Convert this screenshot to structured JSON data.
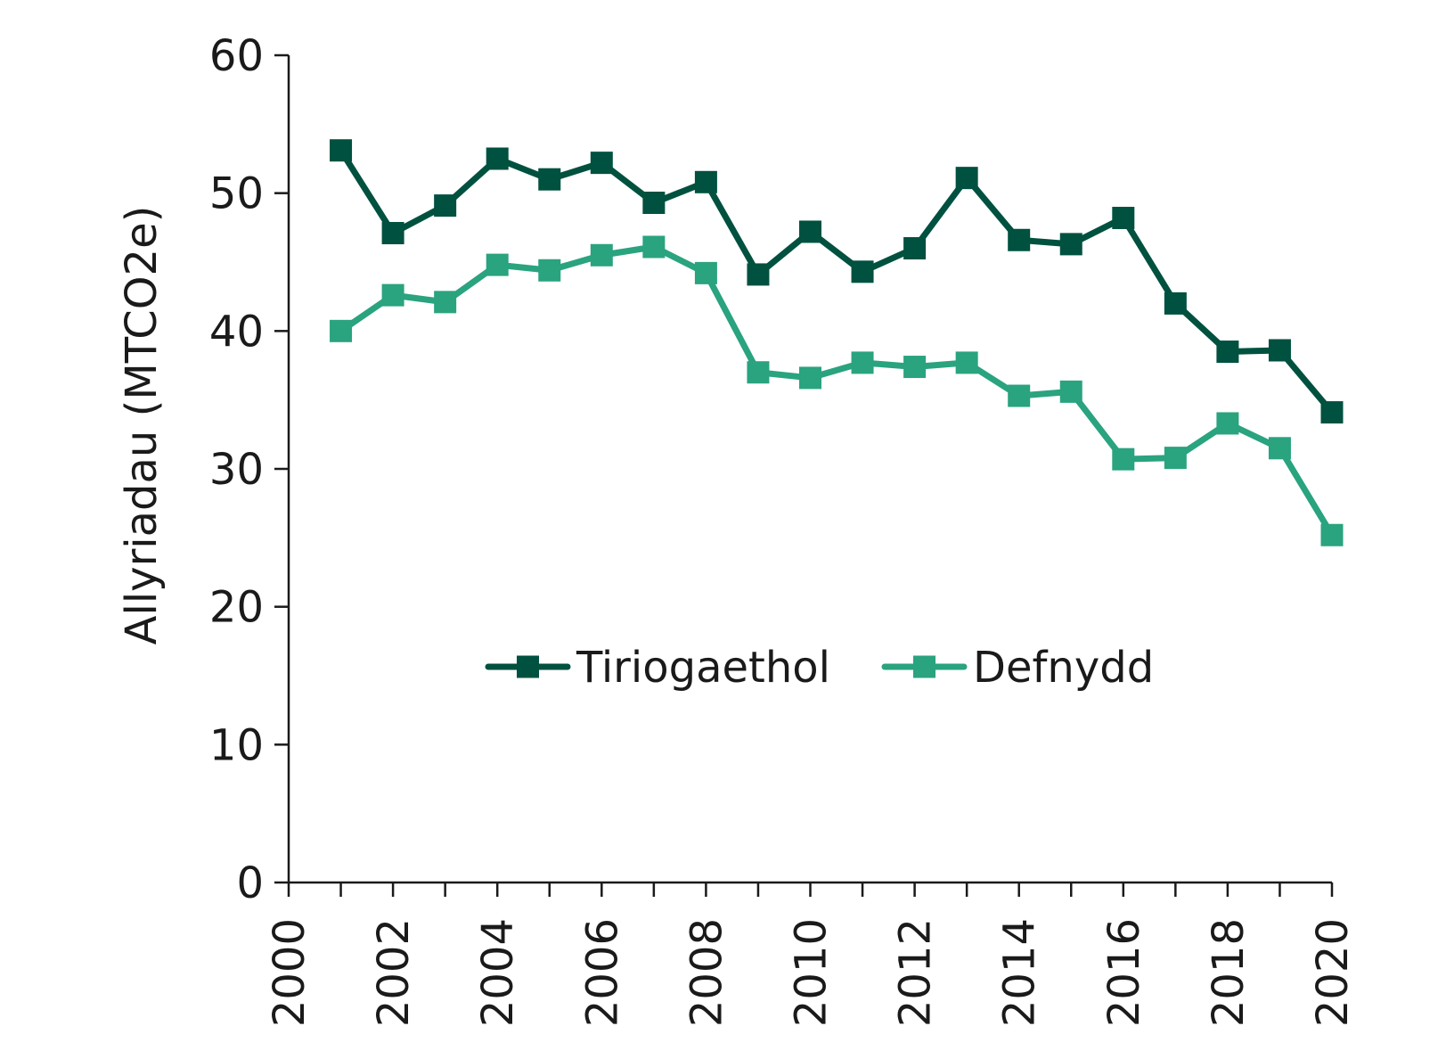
{
  "chart_data": {
    "type": "line",
    "title": "",
    "xlabel": "",
    "ylabel": "Allyriadau (MTCO2e)",
    "ylim": [
      0,
      60
    ],
    "y_ticks": [
      0,
      10,
      20,
      30,
      40,
      50,
      60
    ],
    "xlim": [
      2000,
      2020
    ],
    "x_tick_labels": [
      "2000",
      "2002",
      "2004",
      "2006",
      "2008",
      "2010",
      "2012",
      "2014",
      "2016",
      "2018",
      "2020"
    ],
    "grid": false,
    "legend_position": "center",
    "x": [
      2001,
      2002,
      2003,
      2004,
      2005,
      2006,
      2007,
      2008,
      2009,
      2010,
      2011,
      2012,
      2013,
      2014,
      2015,
      2016,
      2017,
      2018,
      2019,
      2020
    ],
    "series": [
      {
        "name": "Tiriogaethol",
        "color": "#00513f",
        "marker": "square",
        "values": [
          53.1,
          47.1,
          49.1,
          52.5,
          51.0,
          52.2,
          49.3,
          50.8,
          44.1,
          47.2,
          44.3,
          46.0,
          51.1,
          46.6,
          46.3,
          48.2,
          42.0,
          38.5,
          38.6,
          34.1
        ]
      },
      {
        "name": "Defnydd",
        "color": "#2aa37f",
        "marker": "square",
        "values": [
          40.0,
          42.6,
          42.1,
          44.8,
          44.4,
          45.5,
          46.1,
          44.2,
          37.0,
          36.6,
          37.7,
          37.4,
          37.7,
          35.3,
          35.6,
          30.7,
          30.8,
          33.3,
          31.5,
          25.2
        ]
      }
    ]
  }
}
